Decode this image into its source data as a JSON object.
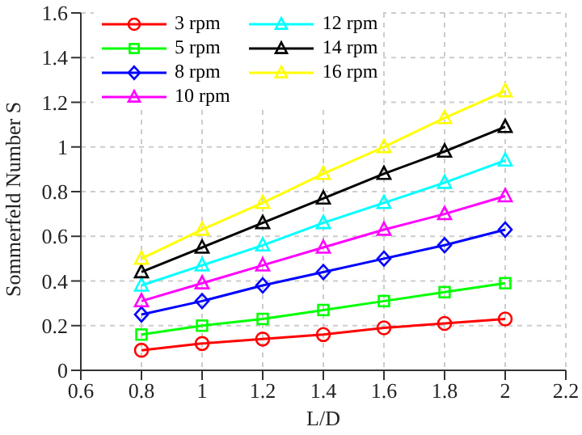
{
  "chart_data": {
    "type": "line",
    "xlabel": "L/D",
    "ylabel": "Sommerfeld Number S",
    "x": [
      0.8,
      1,
      1.2,
      1.4,
      1.6,
      1.8,
      2
    ],
    "series": [
      {
        "name": "3 rpm",
        "color": "#ff0000",
        "marker": "circle",
        "values": [
          0.09,
          0.12,
          0.14,
          0.16,
          0.19,
          0.21,
          0.23
        ]
      },
      {
        "name": "5 rpm",
        "color": "#00ff00",
        "marker": "square",
        "values": [
          0.16,
          0.2,
          0.23,
          0.27,
          0.31,
          0.35,
          0.39
        ]
      },
      {
        "name": "8 rpm",
        "color": "#0000ff",
        "marker": "diamond",
        "values": [
          0.25,
          0.31,
          0.38,
          0.44,
          0.5,
          0.56,
          0.63
        ]
      },
      {
        "name": "10 rpm",
        "color": "#ff00ff",
        "marker": "triangle",
        "values": [
          0.31,
          0.39,
          0.47,
          0.55,
          0.63,
          0.7,
          0.78
        ]
      },
      {
        "name": "12 rpm",
        "color": "#00ffff",
        "marker": "triangle",
        "values": [
          0.38,
          0.47,
          0.56,
          0.66,
          0.75,
          0.84,
          0.94
        ]
      },
      {
        "name": "14 rpm",
        "color": "#000000",
        "marker": "triangle",
        "values": [
          0.44,
          0.55,
          0.66,
          0.77,
          0.88,
          0.98,
          1.09
        ]
      },
      {
        "name": "16 rpm",
        "color": "#ffff00",
        "marker": "triangle",
        "values": [
          0.5,
          0.63,
          0.75,
          0.88,
          1,
          1.13,
          1.25
        ]
      }
    ],
    "xlim": [
      0.6,
      2.2
    ],
    "xticks": [
      0.6,
      0.8,
      1,
      1.2,
      1.4,
      1.6,
      1.8,
      2,
      2.2
    ],
    "ylim": [
      0,
      1.6
    ],
    "yticks": [
      0,
      0.2,
      0.4,
      0.6,
      0.8,
      1,
      1.2,
      1.4,
      1.6
    ],
    "grid": true,
    "legend": "top left",
    "line_style": "solid"
  }
}
